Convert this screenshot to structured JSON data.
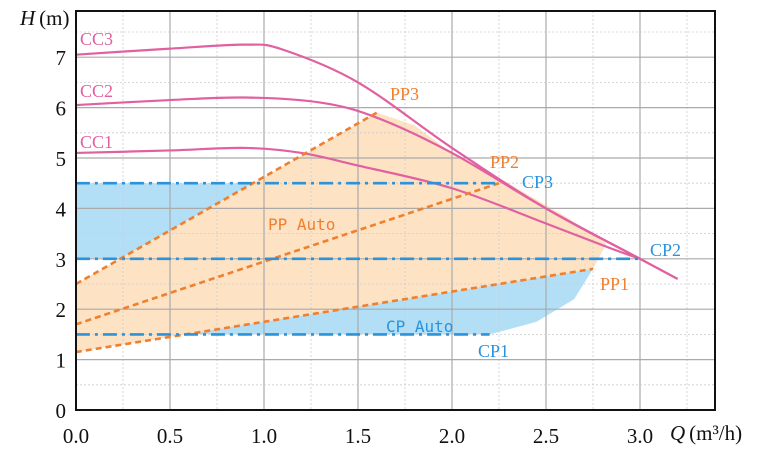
{
  "chart_data": {
    "type": "line",
    "title": "",
    "xlabel": "Q (m3/h)",
    "ylabel": "H (m)",
    "xlabel_var": "Q",
    "xlabel_unit": "(m³/h)",
    "ylabel_var": "H",
    "ylabel_unit": "(m)",
    "xlim": [
      0,
      3.4
    ],
    "ylim": [
      0,
      7.9
    ],
    "xticks": [
      "0.0",
      "0.5",
      "1.0",
      "1.5",
      "2.0",
      "2.5",
      "3.0"
    ],
    "yticks": [
      "0",
      "1",
      "2",
      "3",
      "4",
      "5",
      "6",
      "7"
    ],
    "grid": true,
    "colors": {
      "cc": "#e060a0",
      "pp": "#f07f2e",
      "cp": "#2b92dc",
      "pp_area": "#fde2c4",
      "cp_area": "#b2dff5"
    },
    "series": [
      {
        "name": "CC3",
        "style": "solid",
        "group": "cc",
        "x": [
          0,
          0.5,
          0.9,
          1.1,
          1.5,
          2.0,
          2.5,
          3.0,
          3.2
        ],
        "y": [
          7.05,
          7.17,
          7.25,
          7.15,
          6.5,
          5.2,
          4.0,
          3.0,
          2.6
        ]
      },
      {
        "name": "CC2",
        "style": "solid",
        "group": "cc",
        "x": [
          0,
          0.5,
          0.9,
          1.3,
          1.6,
          2.0,
          2.5,
          3.0,
          3.2
        ],
        "y": [
          6.05,
          6.15,
          6.2,
          6.1,
          5.8,
          5.1,
          4.0,
          3.0,
          2.6
        ]
      },
      {
        "name": "CC1",
        "style": "solid",
        "group": "cc",
        "x": [
          0,
          0.5,
          0.9,
          1.2,
          1.5,
          2.0,
          2.5,
          2.85,
          3.0
        ],
        "y": [
          5.1,
          5.15,
          5.2,
          5.1,
          4.85,
          4.4,
          3.7,
          3.2,
          3.0
        ]
      },
      {
        "name": "PP3",
        "style": "dashed",
        "group": "pp",
        "x": [
          0,
          1.6
        ],
        "y": [
          2.5,
          5.9
        ]
      },
      {
        "name": "PP2",
        "style": "dashed",
        "group": "pp",
        "x": [
          0,
          2.25
        ],
        "y": [
          1.7,
          4.5
        ]
      },
      {
        "name": "PP1",
        "style": "dashed",
        "group": "pp",
        "x": [
          0,
          2.75
        ],
        "y": [
          1.15,
          2.8
        ]
      },
      {
        "name": "CP3",
        "style": "dashdot",
        "group": "cp",
        "x": [
          0,
          2.25
        ],
        "y": [
          4.5,
          4.5
        ]
      },
      {
        "name": "CP2",
        "style": "dashdot",
        "group": "cp",
        "x": [
          0,
          3.0
        ],
        "y": [
          3.0,
          3.0
        ]
      },
      {
        "name": "CP1",
        "style": "dashdot",
        "group": "cp",
        "x": [
          0,
          2.2
        ],
        "y": [
          1.5,
          1.5
        ]
      }
    ],
    "areas": [
      {
        "name": "CP Auto",
        "group": "cp",
        "x": [
          0,
          0.94,
          0,
          0,
          0.5,
          2.2,
          2.45,
          2.65,
          2.75,
          2.82,
          0
        ],
        "y": [
          4.5,
          4.5,
          2.5,
          1.5,
          1.5,
          1.5,
          1.75,
          2.2,
          2.8,
          3.3,
          3.0
        ]
      },
      {
        "name": "PP Auto",
        "group": "pp",
        "x": [
          0,
          0,
          1.6,
          1.8,
          2.0,
          2.3,
          2.6,
          2.82,
          2.75
        ],
        "y": [
          1.15,
          2.5,
          5.9,
          5.65,
          5.1,
          4.5,
          3.85,
          3.3,
          2.8
        ]
      }
    ],
    "annotations": [
      {
        "text": "CC3",
        "group": "cc"
      },
      {
        "text": "CC2",
        "group": "cc"
      },
      {
        "text": "CC1",
        "group": "cc"
      },
      {
        "text": "PP3",
        "group": "pp"
      },
      {
        "text": "PP2",
        "group": "pp"
      },
      {
        "text": "PP1",
        "group": "pp"
      },
      {
        "text": "CP3",
        "group": "cp"
      },
      {
        "text": "CP2",
        "group": "cp"
      },
      {
        "text": "CP1",
        "group": "cp"
      },
      {
        "text": "PP Auto",
        "group": "pp"
      },
      {
        "text": "CP Auto",
        "group": "cp"
      }
    ]
  }
}
